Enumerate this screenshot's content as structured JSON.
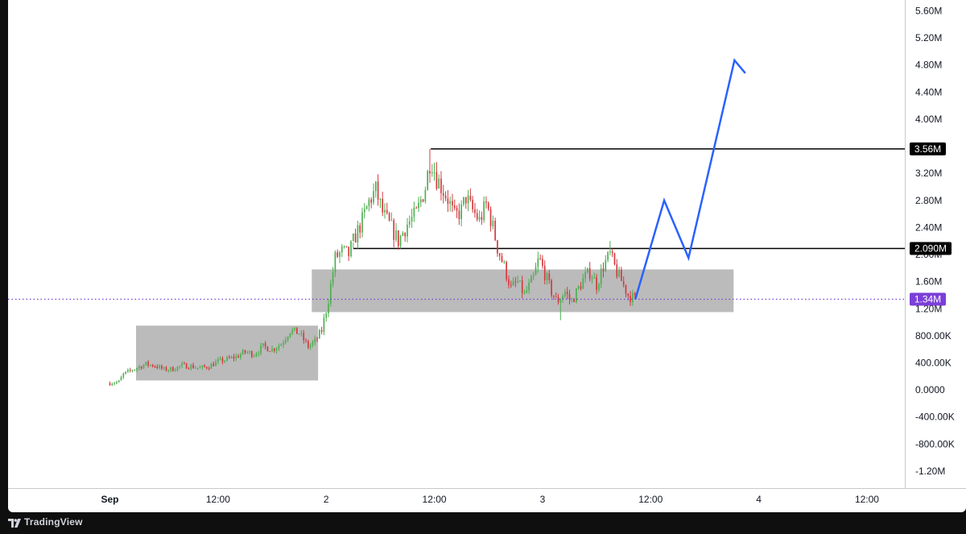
{
  "brand": {
    "name": "TradingView"
  },
  "colors": {
    "up": "#4caf50",
    "down": "#d5393f",
    "zone": "#b5b5b5",
    "projection": "#2962ff",
    "current_price": "#7b3fd8",
    "level_line": "#000000"
  },
  "chart_data": {
    "type": "candlestick",
    "y_axis": {
      "ticks": [
        "5.60M",
        "5.20M",
        "4.80M",
        "4.40M",
        "4.00M",
        "3.60M",
        "3.20M",
        "2.80M",
        "2.40M",
        "2.00M",
        "1.60M",
        "1.20M",
        "800.00K",
        "400.00K",
        "0.0000",
        "-400.00K",
        "-800.00K",
        "-1.20M"
      ],
      "tick_values": [
        5600000,
        5200000,
        4800000,
        4400000,
        4000000,
        3600000,
        3200000,
        2800000,
        2400000,
        2000000,
        1600000,
        1200000,
        800000,
        400000,
        0,
        -400000,
        -800000,
        -1200000
      ],
      "range": [
        -1450000,
        5760000
      ]
    },
    "x_axis": {
      "ticks": [
        "Sep",
        "12:00",
        "2",
        "12:00",
        "3",
        "12:00",
        "4",
        "12:00"
      ],
      "tick_hours": [
        0,
        12,
        24,
        36,
        48,
        60,
        72,
        84
      ],
      "range_hours": [
        -11.3,
        88.2
      ]
    },
    "candle_start_hour": 0,
    "candle_interval_hours": 0.25,
    "close_path": [
      [
        0,
        100000
      ],
      [
        1,
        120000
      ],
      [
        1.5,
        230000
      ],
      [
        2.5,
        300000
      ],
      [
        4,
        380000
      ],
      [
        5,
        360000
      ],
      [
        6,
        300000
      ],
      [
        7,
        310000
      ],
      [
        8,
        360000
      ],
      [
        9,
        350000
      ],
      [
        10,
        320000
      ],
      [
        11,
        350000
      ],
      [
        12,
        420000
      ],
      [
        13,
        450000
      ],
      [
        14,
        490000
      ],
      [
        15,
        560000
      ],
      [
        16,
        530000
      ],
      [
        17,
        640000
      ],
      [
        18,
        600000
      ],
      [
        19,
        680000
      ],
      [
        20,
        880000
      ],
      [
        21,
        840000
      ],
      [
        22,
        640000
      ],
      [
        22.8,
        720000
      ],
      [
        23.5,
        880000
      ],
      [
        24.2,
        1300000
      ],
      [
        25,
        1950000
      ],
      [
        25.8,
        2050000
      ],
      [
        26.5,
        2000000
      ],
      [
        27,
        2200000
      ],
      [
        28,
        2500000
      ],
      [
        28.8,
        2800000
      ],
      [
        29.5,
        2950000
      ],
      [
        30.3,
        2600000
      ],
      [
        31.2,
        2400000
      ],
      [
        32,
        2200000
      ],
      [
        33,
        2450000
      ],
      [
        34,
        2600000
      ],
      [
        35,
        3000000
      ],
      [
        35.6,
        3450000
      ],
      [
        36.2,
        3150000
      ],
      [
        37,
        2950000
      ],
      [
        37.6,
        2800000
      ],
      [
        38.2,
        2550000
      ],
      [
        39,
        2650000
      ],
      [
        39.5,
        2850000
      ],
      [
        40,
        2700000
      ],
      [
        41,
        2500000
      ],
      [
        41.8,
        2750000
      ],
      [
        42.5,
        2400000
      ],
      [
        43,
        2100000
      ],
      [
        43.8,
        1800000
      ],
      [
        44.5,
        1500000
      ],
      [
        45.2,
        1600000
      ],
      [
        46,
        1400000
      ],
      [
        47,
        1650000
      ],
      [
        47.6,
        1950000
      ],
      [
        48.3,
        1700000
      ],
      [
        49,
        1450000
      ],
      [
        49.6,
        1300000
      ],
      [
        50.5,
        1450000
      ],
      [
        51.2,
        1300000
      ],
      [
        52,
        1500000
      ],
      [
        52.6,
        1650000
      ],
      [
        53.3,
        1750000
      ],
      [
        54,
        1550000
      ],
      [
        54.8,
        1850000
      ],
      [
        55.5,
        2000000
      ],
      [
        56.2,
        1750000
      ],
      [
        56.8,
        1600000
      ],
      [
        57.5,
        1400000
      ],
      [
        58.3,
        1340000
      ]
    ],
    "highlight_points": [
      {
        "hour": 35.6,
        "high": 3560000
      },
      {
        "hour": 27.0,
        "high": 2090000
      },
      {
        "hour": 55.5,
        "high": 2200000
      },
      {
        "hour": 50.0,
        "low": 1030000
      }
    ],
    "levels": [
      {
        "label": "3.56M",
        "value": 3560000,
        "start_hour": 35.6
      },
      {
        "label": "2.090M",
        "value": 2090000,
        "start_hour": 27.0
      }
    ],
    "current_price": {
      "label": "1.34M",
      "value": 1340000
    },
    "zones": [
      {
        "start_hour": 2.9,
        "end_hour": 23.1,
        "low": 140000,
        "high": 950000
      },
      {
        "start_hour": 22.4,
        "end_hour": 58.5,
        "low": 1150000,
        "high": 1780000
      },
      {
        "start_hour": 58.5,
        "end_hour": 69.2,
        "low": 1150000,
        "high": 1780000
      }
    ],
    "projection": [
      [
        58.3,
        1340000
      ],
      [
        61.5,
        2800000
      ],
      [
        64.2,
        1950000
      ],
      [
        69.3,
        4870000
      ],
      [
        70.5,
        4680000
      ]
    ]
  }
}
